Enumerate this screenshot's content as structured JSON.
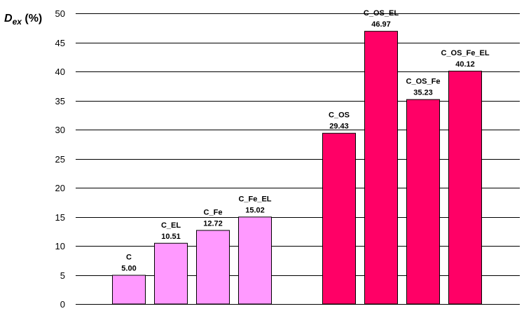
{
  "chart_data": {
    "type": "bar",
    "ylabel": {
      "main": "D",
      "sub": "ex",
      "unit": " (%)"
    },
    "ylim": [
      0,
      50
    ],
    "yticks": [
      0,
      5,
      10,
      15,
      20,
      25,
      30,
      35,
      40,
      45,
      50
    ],
    "grid": true,
    "groups": [
      {
        "color": "#FF99FF",
        "bars": [
          {
            "name": "C",
            "value": 5.0,
            "value_label": "5.00"
          },
          {
            "name": "C_EL",
            "value": 10.51,
            "value_label": "10.51"
          },
          {
            "name": "C_Fe",
            "value": 12.72,
            "value_label": "12.72"
          },
          {
            "name": "C_Fe_EL",
            "value": 15.02,
            "value_label": "15.02"
          }
        ]
      },
      {
        "color": "#FF0066",
        "bars": [
          {
            "name": "C_OS",
            "value": 29.43,
            "value_label": "29.43"
          },
          {
            "name": "C_OS_EL",
            "value": 46.97,
            "value_label": "46.97"
          },
          {
            "name": "C_OS_Fe",
            "value": 35.23,
            "value_label": "35.23"
          },
          {
            "name": "C_OS_Fe_EL",
            "value": 40.12,
            "value_label": "40.12"
          }
        ]
      }
    ]
  }
}
